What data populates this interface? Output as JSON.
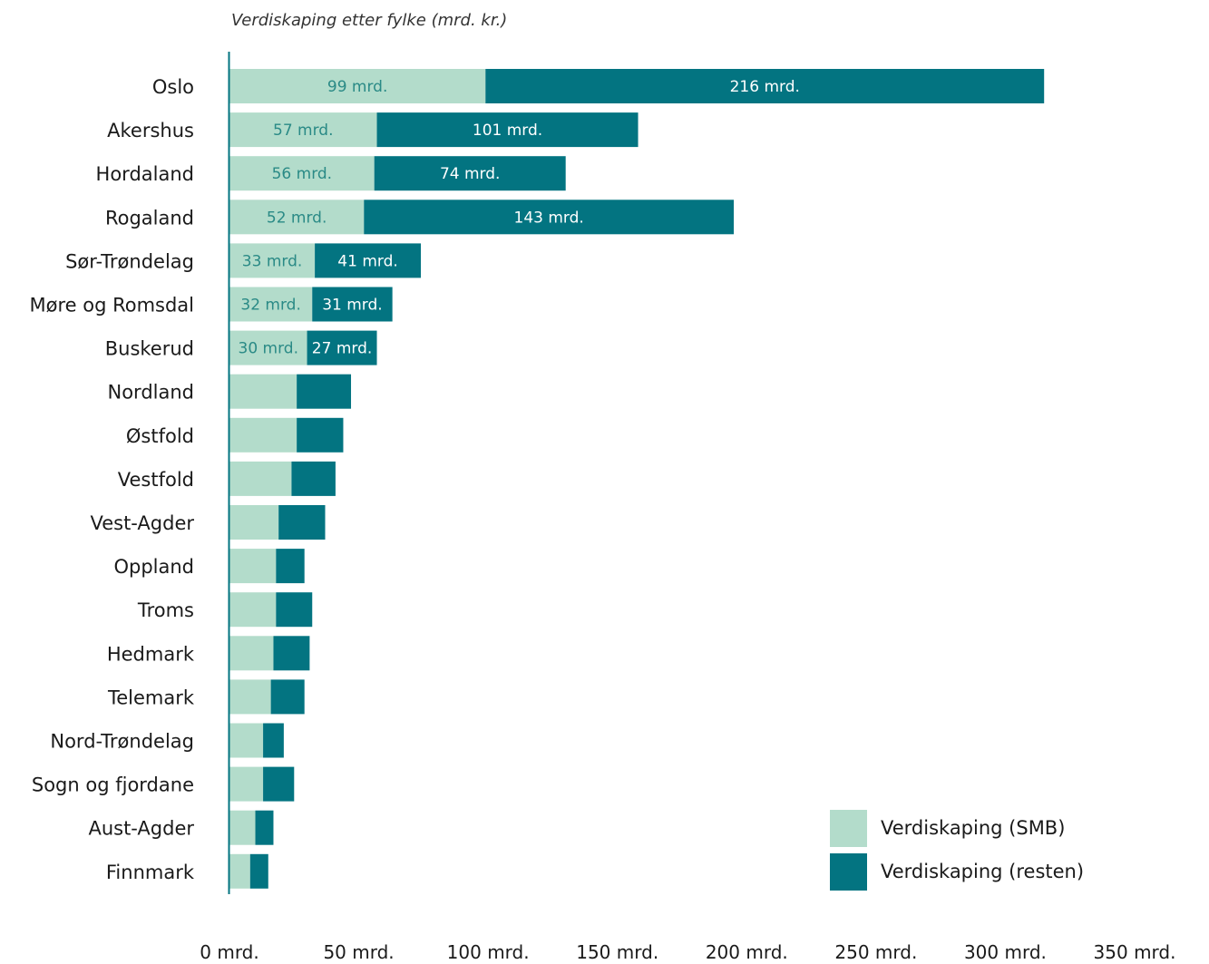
{
  "chart_data": {
    "type": "bar",
    "orientation": "horizontal",
    "stacked": true,
    "title": "Verdiskaping etter fylke (mrd. kr.)",
    "xlabel": "",
    "ylabel": "",
    "xlim": [
      0,
      350
    ],
    "x_ticks": [
      0,
      50,
      100,
      150,
      200,
      250,
      300,
      350
    ],
    "x_tick_labels": [
      "0 mrd.",
      "50 mrd.",
      "100 mrd.",
      "150 mrd.",
      "200 mrd.",
      "250 mrd.",
      "300 mrd.",
      "350 mrd."
    ],
    "grid": false,
    "legend_position": "bottom-right",
    "categories": [
      "Oslo",
      "Akershus",
      "Hordaland",
      "Rogaland",
      "Sør-Trøndelag",
      "Møre og Romsdal",
      "Buskerud",
      "Nordland",
      "Østfold",
      "Vestfold",
      "Vest-Agder",
      "Oppland",
      "Troms",
      "Hedmark",
      "Telemark",
      "Nord-Trøndelag",
      "Sogn og fjordane",
      "Aust-Agder",
      "Finnmark"
    ],
    "series": [
      {
        "name": "Verdiskaping (SMB)",
        "color": "#b3dccb",
        "label_color": "#2a8a86",
        "values": [
          99,
          57,
          56,
          52,
          33,
          32,
          30,
          26,
          26,
          24,
          19,
          18,
          18,
          17,
          16,
          13,
          13,
          10,
          8
        ],
        "labels": [
          "99 mrd.",
          "57 mrd.",
          "56 mrd.",
          "52 mrd.",
          "33 mrd.",
          "32 mrd.",
          "30 mrd.",
          "",
          "",
          "",
          "",
          "",
          "",
          "",
          "",
          "",
          "",
          "",
          ""
        ]
      },
      {
        "name": "Verdiskaping (resten)",
        "color": "#037481",
        "label_color": "#ffffff",
        "values": [
          216,
          101,
          74,
          143,
          41,
          31,
          27,
          21,
          18,
          17,
          18,
          11,
          14,
          14,
          13,
          8,
          12,
          7,
          7
        ],
        "labels": [
          "216 mrd.",
          "101 mrd.",
          "74 mrd.",
          "143 mrd.",
          "41 mrd.",
          "31 mrd.",
          "27 mrd.",
          "",
          "",
          "",
          "",
          "",
          "",
          "",
          "",
          "",
          "",
          "",
          ""
        ]
      }
    ],
    "axis_color": "#037481"
  }
}
